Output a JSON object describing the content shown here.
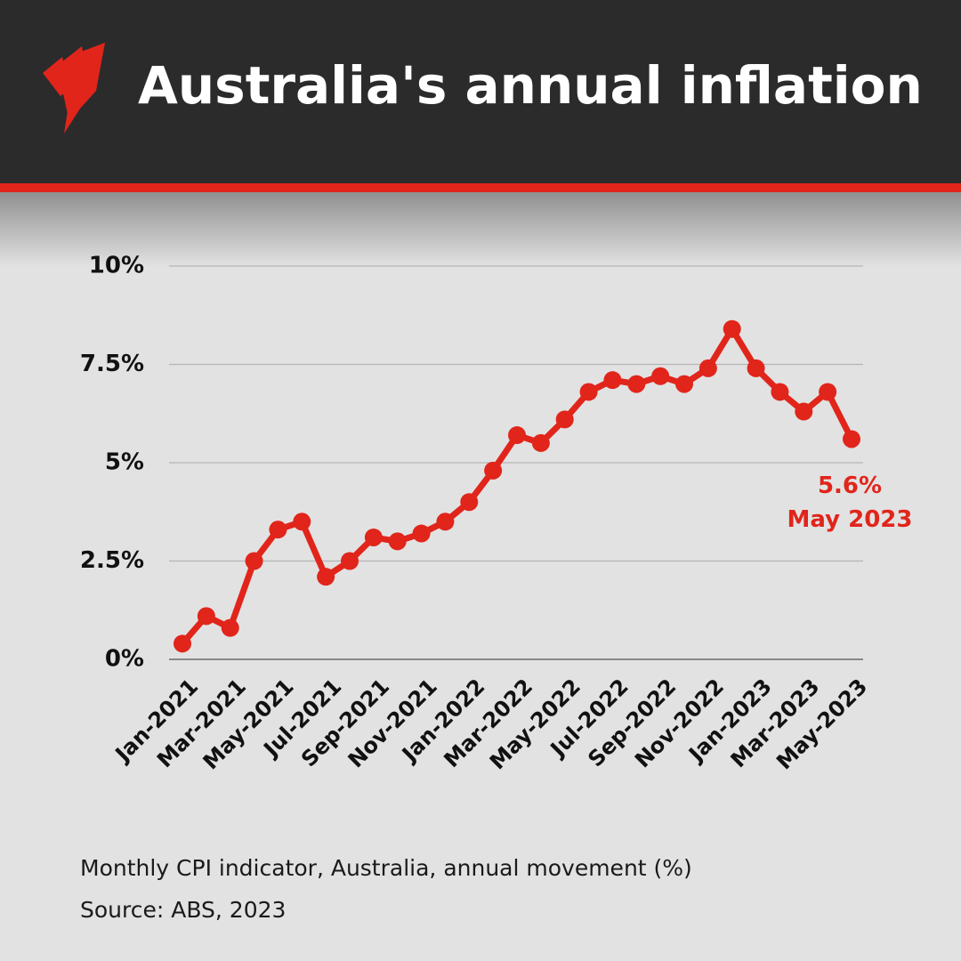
{
  "chart_data": {
    "type": "line",
    "title": "Australia's annual inflation",
    "categories": [
      "Jan-2021",
      null,
      "Mar-2021",
      null,
      "May-2021",
      null,
      "Jul-2021",
      null,
      "Sep-2021",
      null,
      "Nov-2021",
      null,
      "Jan-2022",
      null,
      "Mar-2022",
      null,
      "May-2022",
      null,
      "Jul-2022",
      null,
      "Sep-2022",
      null,
      "Nov-2022",
      null,
      "Jan-2023",
      null,
      "Mar-2023",
      null,
      "May-2023"
    ],
    "values": [
      0.4,
      1.1,
      0.8,
      2.5,
      3.3,
      3.5,
      2.1,
      2.5,
      3.1,
      3.0,
      3.2,
      3.5,
      4.0,
      4.8,
      5.7,
      5.5,
      6.1,
      6.8,
      7.1,
      7.0,
      7.2,
      7.0,
      7.4,
      8.4,
      7.4,
      6.8,
      6.3,
      6.8,
      5.6
    ],
    "value_labels": [
      null,
      null,
      null,
      null,
      null,
      null,
      null,
      null,
      null,
      null,
      null,
      null,
      null,
      null,
      null,
      null,
      null,
      null,
      null,
      null,
      null,
      null,
      null,
      null,
      null,
      null,
      null,
      null,
      "5.6%"
    ],
    "annotation": "May 2023",
    "color": "#e1251b",
    "ylim": [
      0,
      10
    ],
    "yticks": [
      {
        "value": 0,
        "label": "0%"
      },
      {
        "value": 2.5,
        "label": "2.5%"
      },
      {
        "value": 5,
        "label": "5%"
      },
      {
        "value": 7.5,
        "label": "7.5%"
      },
      {
        "value": 10,
        "label": "10%"
      }
    ],
    "grid": true,
    "note": "Monthly CPI indicator, Australia, annual movement (%)",
    "source": "Source: ABS, 2023"
  }
}
